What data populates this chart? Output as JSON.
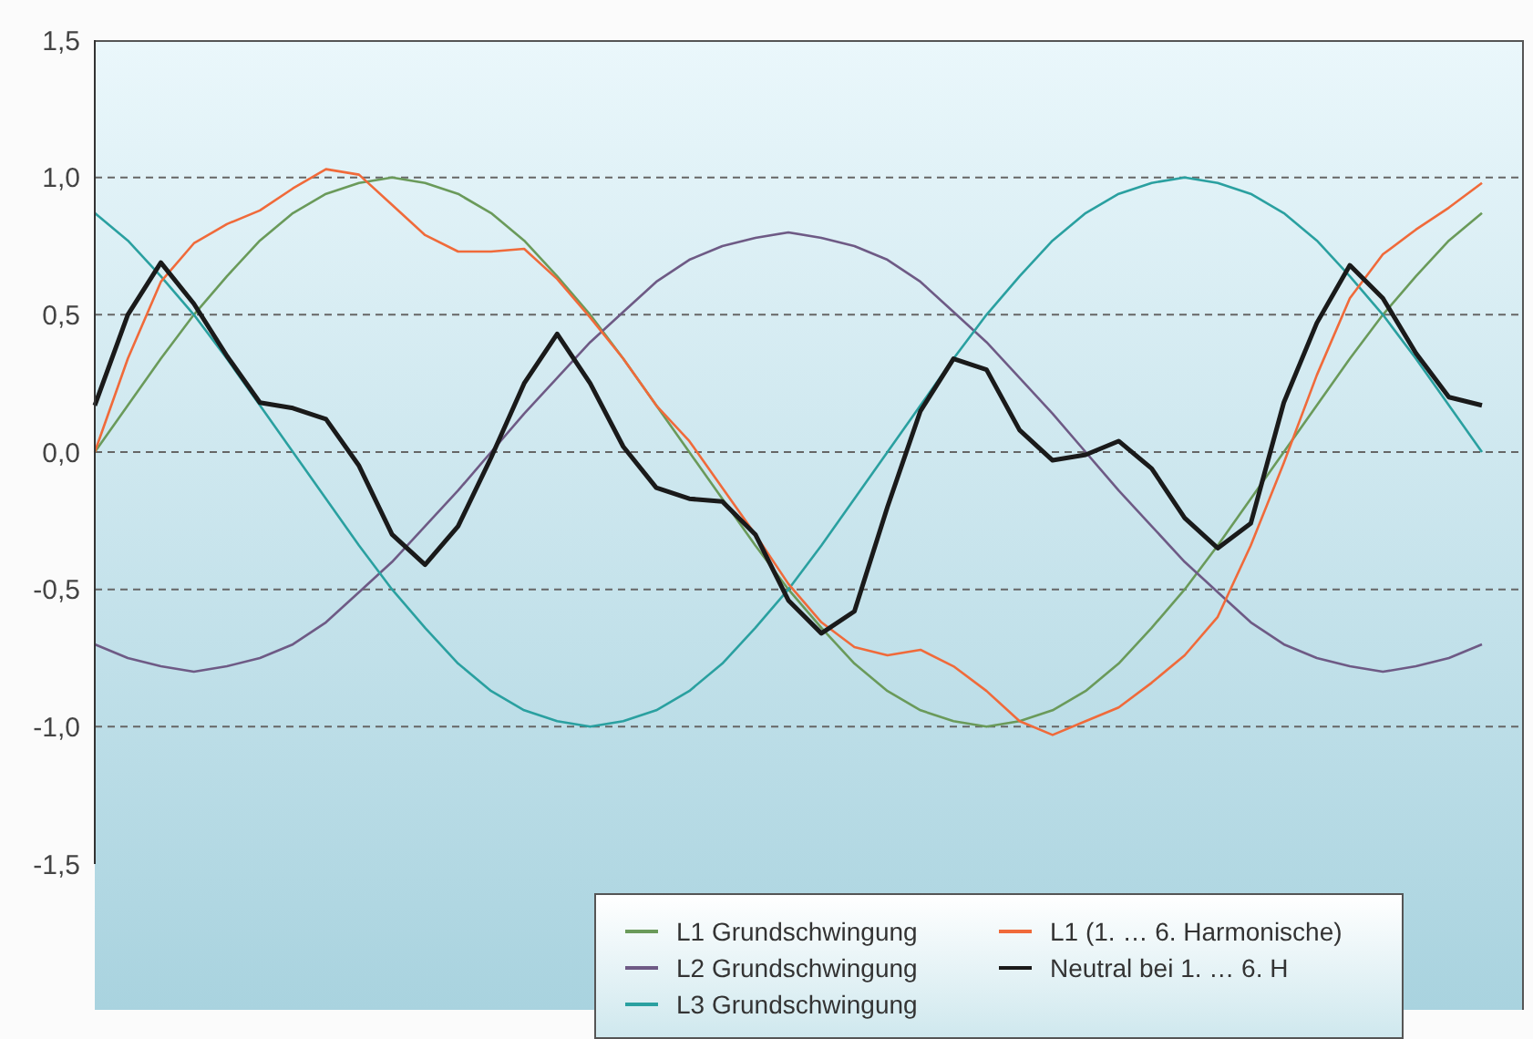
{
  "chart_data": {
    "type": "line",
    "categories": [
      null,
      null,
      null,
      null,
      null,
      null,
      null,
      null,
      null,
      null,
      null,
      null,
      null,
      null,
      null,
      null,
      null,
      null,
      null,
      null,
      null,
      null,
      null,
      null,
      null,
      null,
      null,
      null,
      null,
      null,
      null,
      null,
      null,
      null,
      null,
      null,
      null,
      null,
      null,
      null,
      null,
      null,
      null
    ],
    "ylim": [
      -1.5,
      1.5
    ],
    "yticks": [
      {
        "value": -1.5,
        "label": "-1,5"
      },
      {
        "value": -1,
        "label": "-1,0"
      },
      {
        "value": -0.5,
        "label": "-0,5"
      },
      {
        "value": 0,
        "label": "0,0"
      },
      {
        "value": 0.5,
        "label": "0,5"
      },
      {
        "value": 1,
        "label": "1,0"
      },
      {
        "value": 1.5,
        "label": "1,5"
      }
    ],
    "tick_labels": "y",
    "grid": "y",
    "legend": "bottom right",
    "marker": "none",
    "line_style": "solid",
    "series": [
      {
        "name": "L1 Grundschwingung",
        "color": "#6a9a5a",
        "values": [
          0,
          0.17,
          0.34,
          0.5,
          0.64,
          0.77,
          0.87,
          0.94,
          0.98,
          1,
          0.98,
          0.94,
          0.87,
          0.77,
          0.64,
          0.5,
          0.34,
          0.17,
          0,
          -0.17,
          -0.34,
          -0.5,
          -0.64,
          -0.77,
          -0.87,
          -0.94,
          -0.98,
          -1,
          -0.98,
          -0.94,
          -0.87,
          -0.77,
          -0.64,
          -0.5,
          -0.34,
          -0.17,
          0,
          0.17,
          0.34,
          0.5,
          0.64,
          0.77,
          0.87
        ]
      },
      {
        "name": "L2 Grundschwingung",
        "color": "#6e5a85",
        "values": [
          -0.7,
          -0.75,
          -0.78,
          -0.8,
          -0.78,
          -0.75,
          -0.7,
          -0.62,
          -0.51,
          -0.4,
          -0.27,
          -0.14,
          0,
          0.14,
          0.27,
          0.4,
          0.51,
          0.62,
          0.7,
          0.75,
          0.78,
          0.8,
          0.78,
          0.75,
          0.7,
          0.62,
          0.51,
          0.4,
          0.27,
          0.14,
          0,
          -0.14,
          -0.27,
          -0.4,
          -0.51,
          -0.62,
          -0.7,
          -0.75,
          -0.78,
          -0.8,
          -0.78,
          -0.75,
          -0.7
        ]
      },
      {
        "name": "L3 Grundschwingung",
        "color": "#2aa0a0",
        "values": [
          0.87,
          0.77,
          0.64,
          0.5,
          0.34,
          0.17,
          0,
          -0.17,
          -0.34,
          -0.5,
          -0.64,
          -0.77,
          -0.87,
          -0.94,
          -0.98,
          -1,
          -0.98,
          -0.94,
          -0.87,
          -0.77,
          -0.64,
          -0.5,
          -0.34,
          -0.17,
          0,
          0.17,
          0.34,
          0.5,
          0.64,
          0.77,
          0.87,
          0.94,
          0.98,
          1,
          0.98,
          0.94,
          0.87,
          0.77,
          0.64,
          0.5,
          0.34,
          0.17,
          0
        ]
      },
      {
        "name": "L1 (1. … 6. Harmonische)",
        "color": "#f06a3a",
        "values": [
          0,
          0.34,
          0.62,
          0.76,
          0.83,
          0.88,
          0.96,
          1.03,
          1.01,
          0.9,
          0.79,
          0.73,
          0.73,
          0.74,
          0.63,
          0.49,
          0.34,
          0.17,
          0.04,
          -0.13,
          -0.3,
          -0.48,
          -0.62,
          -0.71,
          -0.74,
          -0.72,
          -0.78,
          -0.87,
          -0.98,
          -1.03,
          -0.98,
          -0.93,
          -0.84,
          -0.74,
          -0.6,
          -0.34,
          -0.04,
          0.28,
          0.56,
          0.72,
          0.81,
          0.89,
          0.98
        ]
      },
      {
        "name": "Neutral bei 1. … 6. H",
        "color": "#1a1a1a",
        "values": [
          0.17,
          0.5,
          0.69,
          0.54,
          0.35,
          0.18,
          0.16,
          0.12,
          -0.05,
          -0.3,
          -0.41,
          -0.27,
          -0.02,
          0.25,
          0.43,
          0.25,
          0.02,
          -0.13,
          -0.17,
          -0.18,
          -0.3,
          -0.54,
          -0.66,
          -0.58,
          -0.2,
          0.15,
          0.34,
          0.3,
          0.08,
          -0.03,
          -0.01,
          0.04,
          -0.06,
          -0.24,
          -0.35,
          -0.26,
          0.18,
          0.47,
          0.68,
          0.56,
          0.36,
          0.2,
          0.17
        ]
      }
    ]
  }
}
